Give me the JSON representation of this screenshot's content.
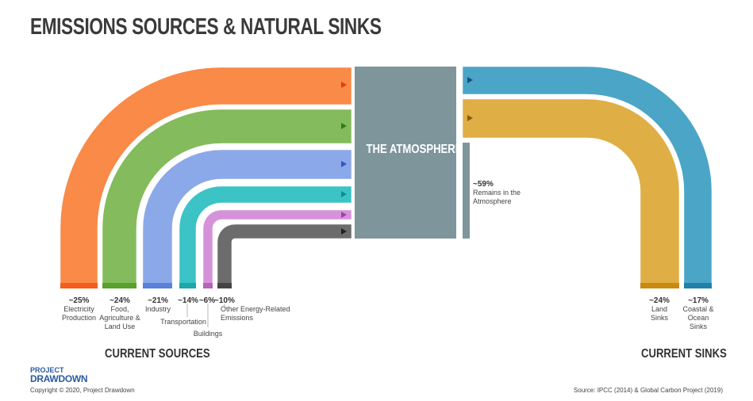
{
  "title": "EMISSIONS SOURCES & NATURAL SINKS",
  "atmosphere": {
    "label": "THE ATMOSPHERE",
    "remains_pct": "~59%",
    "remains_text": "Remains in the Atmosphere",
    "color": "#7f959c"
  },
  "sources": [
    {
      "pct": "~25%",
      "label": "Electricity Production",
      "color": "#f98a48"
    },
    {
      "pct": "~24%",
      "label": "Food, Agriculture & Land Use",
      "color": "#84bb5c"
    },
    {
      "pct": "~21%",
      "label": "Industry",
      "color": "#8ba8e9"
    },
    {
      "pct": "~14%",
      "label": "Transportation",
      "color": "#3bc3c6"
    },
    {
      "pct": "~6%",
      "label": "Buildings",
      "color": "#d592d9"
    },
    {
      "pct": "~10%",
      "label": "Other Energy-Related Emissions",
      "color": "#6c6c6c"
    }
  ],
  "sinks": [
    {
      "pct": "~24%",
      "label": "Land Sinks",
      "color": "#dfae45"
    },
    {
      "pct": "~17%",
      "label": "Coastal & Ocean Sinks",
      "color": "#4aa5c6"
    }
  ],
  "sources_heading": "CURRENT SOURCES",
  "sinks_heading": "CURRENT SINKS",
  "logo": {
    "line1": "PROJECT",
    "line2": "DRAWDOWN"
  },
  "copyright": "Copyright © 2020, Project Drawdown",
  "source_note": "Source: IPCC (2014) & Global Carbon Project (2019)"
}
